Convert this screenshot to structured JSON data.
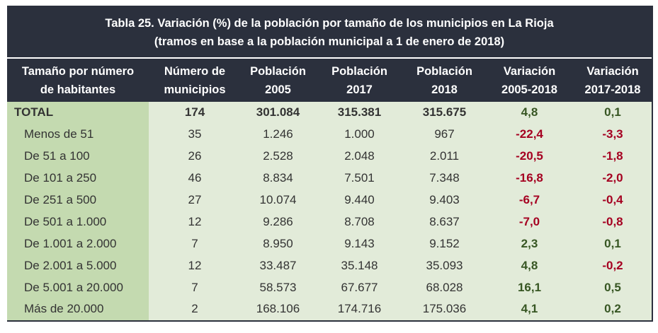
{
  "title": {
    "line1": "Tabla 25. Variación (%) de la población por tamaño de los municipios en La Rioja",
    "line2": "(tramos en base a la población municipal a 1 de enero de 2018)"
  },
  "headers": [
    [
      "Tamaño por número",
      "de habitantes"
    ],
    [
      "Número de",
      "municipios"
    ],
    [
      "Población",
      "2005"
    ],
    [
      "Población",
      "2017"
    ],
    [
      "Población",
      "2018"
    ],
    [
      "Variación",
      "2005-2018"
    ],
    [
      "Variación",
      "2017-2018"
    ]
  ],
  "rows": [
    [
      "TOTAL",
      "174",
      "301.084",
      "315.381",
      "315.675",
      "4,8",
      "0,1"
    ],
    [
      "Menos de 51",
      "35",
      "1.246",
      "1.000",
      "967",
      "-22,4",
      "-3,3"
    ],
    [
      "De 51 a 100",
      "26",
      "2.528",
      "2.048",
      "2.011",
      "-20,5",
      "-1,8"
    ],
    [
      "De 101 a 250",
      "46",
      "8.834",
      "7.501",
      "7.348",
      "-16,8",
      "-2,0"
    ],
    [
      "De 251 a 500",
      "27",
      "10.074",
      "9.440",
      "9.403",
      "-6,7",
      "-0,4"
    ],
    [
      "De 501 a 1.000",
      "12",
      "9.286",
      "8.708",
      "8.637",
      "-7,0",
      "-0,8"
    ],
    [
      "De 1.001 a 2.000",
      "7",
      "8.950",
      "9.143",
      "9.152",
      "2,3",
      "0,1"
    ],
    [
      "De 2.001 a 5.000",
      "12",
      "33.487",
      "35.148",
      "35.093",
      "4,8",
      "-0,2"
    ],
    [
      "De 5.001 a 20.000",
      "7",
      "58.573",
      "67.677",
      "68.028",
      "16,1",
      "0,5"
    ],
    [
      "Más de 20.000",
      "2",
      "168.106",
      "174.716",
      "175.036",
      "4,1",
      "0,2"
    ]
  ],
  "colors": {
    "header_bg": "#2b303d",
    "first_col_bg": "#c4dab0",
    "body_bg": "#e2ebd9",
    "positive": "#375623",
    "negative": "#a50021"
  }
}
